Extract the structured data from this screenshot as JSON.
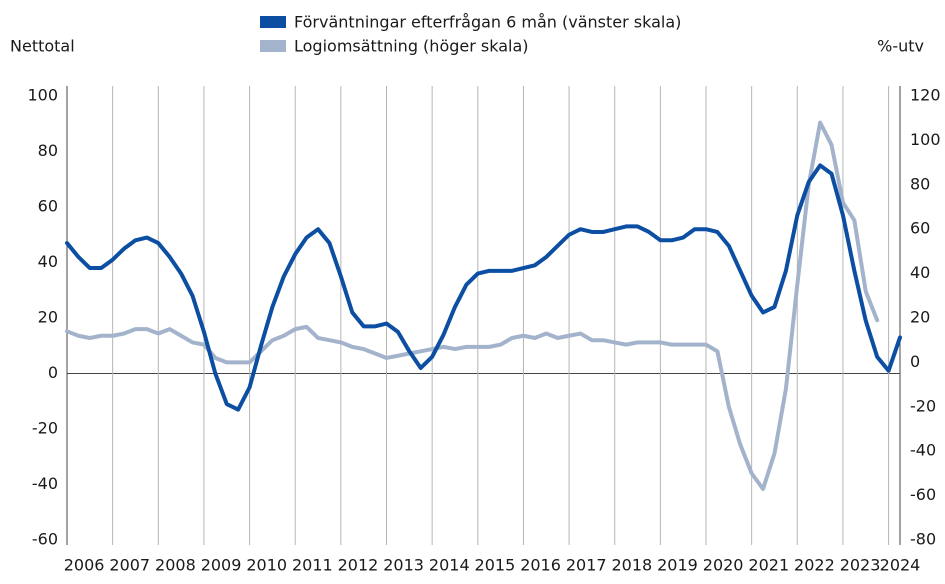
{
  "chart_data": {
    "type": "line",
    "y_label": "Nettotal",
    "y2_label": "%-utv",
    "categories": [
      "2006",
      null,
      null,
      null,
      "2007",
      null,
      null,
      null,
      "2008",
      null,
      null,
      null,
      "2009",
      null,
      null,
      null,
      "2010",
      null,
      null,
      null,
      "2011",
      null,
      null,
      null,
      "2012",
      null,
      null,
      null,
      "2013",
      null,
      null,
      null,
      "2014",
      null,
      null,
      null,
      "2015",
      null,
      null,
      null,
      "2016",
      null,
      null,
      null,
      "2017",
      null,
      null,
      null,
      "2018",
      null,
      null,
      null,
      "2019",
      null,
      null,
      null,
      "2020",
      null,
      null,
      null,
      "2021",
      null,
      null,
      null,
      "2022",
      null,
      null,
      null,
      "2023",
      null,
      null,
      null,
      "2024",
      null
    ],
    "series": [
      {
        "name": "Förväntningar efterfrågan 6 mån (vänster skala)",
        "color": "#0b4ea2",
        "axis": "y",
        "values": [
          47,
          42,
          38,
          38,
          41,
          45,
          48,
          49,
          47,
          42,
          36,
          28,
          15,
          0,
          -11,
          -13,
          -5,
          10,
          24,
          35,
          43,
          49,
          52,
          47,
          35,
          22,
          17,
          17,
          18,
          15,
          8,
          2,
          6,
          14,
          24,
          32,
          36,
          37,
          37,
          37,
          38,
          39,
          42,
          46,
          50,
          52,
          51,
          51,
          52,
          53,
          53,
          51,
          48,
          48,
          49,
          52,
          52,
          51,
          46,
          37,
          28,
          22,
          24,
          37,
          57,
          69,
          75,
          72,
          57,
          37,
          19,
          6,
          1,
          13
        ]
      },
      {
        "name": "Logiomsättning (höger skala)",
        "color": "#a3b3cc",
        "axis": "y2",
        "values": [
          14,
          12,
          11,
          12,
          12,
          13,
          15,
          15,
          13,
          15,
          12,
          9,
          8,
          2,
          0,
          0,
          0,
          5,
          10,
          12,
          15,
          16,
          11,
          10,
          9,
          7,
          6,
          4,
          2,
          3,
          4,
          5,
          6,
          7,
          6,
          7,
          7,
          7,
          8,
          11,
          12,
          11,
          13,
          11,
          12,
          13,
          10,
          10,
          9,
          8,
          9,
          9,
          9,
          8,
          8,
          8,
          8,
          5,
          -20,
          -37,
          -50,
          -57,
          -41,
          -12,
          35,
          80,
          108,
          98,
          72,
          64,
          32,
          19,
          null,
          null
        ]
      }
    ],
    "ylim": [
      -60,
      100
    ],
    "yticks": [
      -60,
      -40,
      -20,
      0,
      20,
      40,
      60,
      80,
      100
    ],
    "y2lim": [
      -80,
      120
    ],
    "y2ticks": [
      -80,
      -60,
      -40,
      -20,
      0,
      20,
      40,
      60,
      80,
      100,
      120
    ]
  }
}
